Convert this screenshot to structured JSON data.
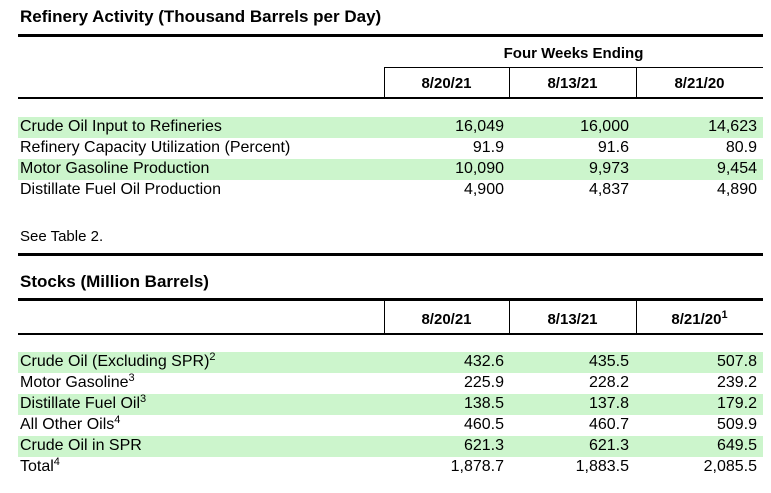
{
  "refinery": {
    "title": "Refinery Activity (Thousand Barrels per Day)",
    "group_header": "Four Weeks Ending",
    "columns": [
      "8/20/21",
      "8/13/21",
      "8/21/20"
    ],
    "rows": [
      {
        "label": "Crude Oil Input to Refineries",
        "values": [
          "16,049",
          "16,000",
          "14,623"
        ],
        "highlight": true
      },
      {
        "label": "Refinery Capacity Utilization (Percent)",
        "values": [
          "91.9",
          "91.6",
          "80.9"
        ],
        "highlight": false
      },
      {
        "label": "Motor Gasoline Production",
        "values": [
          "10,090",
          "9,973",
          "9,454"
        ],
        "highlight": true
      },
      {
        "label": "Distillate Fuel Oil Production",
        "values": [
          "4,900",
          "4,837",
          "4,890"
        ],
        "highlight": false
      }
    ],
    "note": "See Table 2."
  },
  "stocks": {
    "title": "Stocks (Million Barrels)",
    "columns": [
      "8/20/21",
      "8/13/21",
      "8/21/20"
    ],
    "column_footnotes": [
      "",
      "",
      "1"
    ],
    "rows": [
      {
        "label": "Crude Oil (Excluding SPR)",
        "footnote": "2",
        "values": [
          "432.6",
          "435.5",
          "507.8"
        ],
        "highlight": true
      },
      {
        "label": "Motor Gasoline",
        "footnote": "3",
        "values": [
          "225.9",
          "228.2",
          "239.2"
        ],
        "highlight": false
      },
      {
        "label": "Distillate Fuel Oil",
        "footnote": "3",
        "values": [
          "138.5",
          "137.8",
          "179.2"
        ],
        "highlight": true
      },
      {
        "label": "All Other Oils",
        "footnote": "4",
        "values": [
          "460.5",
          "460.7",
          "509.9"
        ],
        "highlight": false
      },
      {
        "label": "Crude Oil in SPR",
        "footnote": "",
        "values": [
          "621.3",
          "621.3",
          "649.5"
        ],
        "highlight": true
      },
      {
        "label": "Total",
        "footnote": "4",
        "values": [
          "1,878.7",
          "1,883.5",
          "2,085.5"
        ],
        "highlight": false
      }
    ]
  },
  "colors": {
    "highlight": "#ccf5cc",
    "rule": "#000000"
  }
}
